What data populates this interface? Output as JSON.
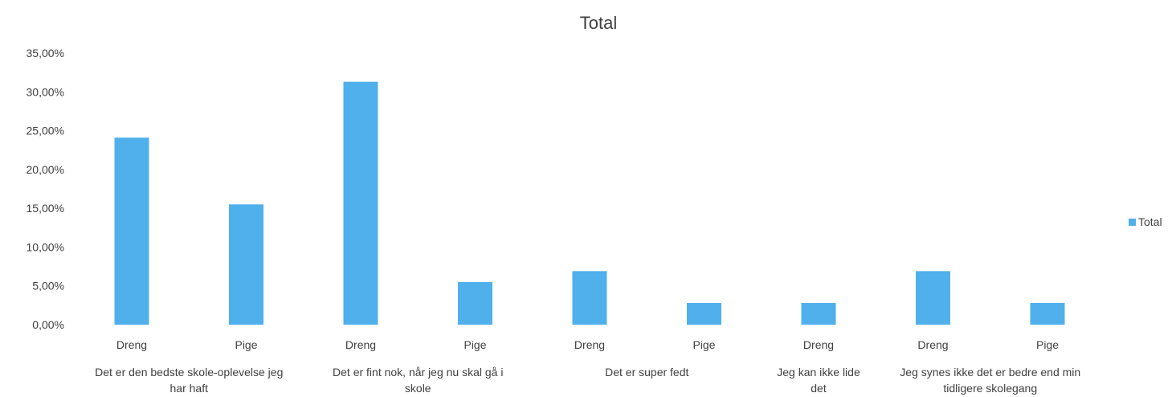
{
  "chart_data": {
    "type": "bar",
    "title": "Total",
    "xlabel": "",
    "ylabel": "",
    "ylim": [
      0,
      0.35
    ],
    "yticks": [
      "0,00%",
      "5,00%",
      "10,00%",
      "15,00%",
      "20,00%",
      "25,00%",
      "30,00%",
      "35,00%"
    ],
    "ytick_values": [
      0,
      0.05,
      0.1,
      0.15,
      0.2,
      0.25,
      0.3,
      0.35
    ],
    "grid": false,
    "legend_position": "right",
    "bar_color": "#4FB0EC",
    "groups": [
      {
        "label_lines": [
          "Det er den bedste skole-oplevelse jeg",
          "har haft"
        ],
        "subcategories": [
          "Dreng",
          "Pige"
        ]
      },
      {
        "label_lines": [
          "Det er fint nok, når jeg nu skal gå i",
          "skole"
        ],
        "subcategories": [
          "Dreng",
          "Pige"
        ]
      },
      {
        "label_lines": [
          "Det er super fedt"
        ],
        "subcategories": [
          "Dreng",
          "Pige"
        ]
      },
      {
        "label_lines": [
          "Jeg kan ikke lide",
          "det"
        ],
        "subcategories": [
          "Dreng"
        ]
      },
      {
        "label_lines": [
          "Jeg synes ikke det er bedre end min",
          "tidligere skolegang"
        ],
        "subcategories": [
          "Dreng",
          "Pige"
        ]
      }
    ],
    "series": [
      {
        "name": "Total",
        "values": [
          0.241,
          0.155,
          0.313,
          0.055,
          0.069,
          0.028,
          0.028,
          0.069,
          0.028
        ]
      }
    ]
  }
}
